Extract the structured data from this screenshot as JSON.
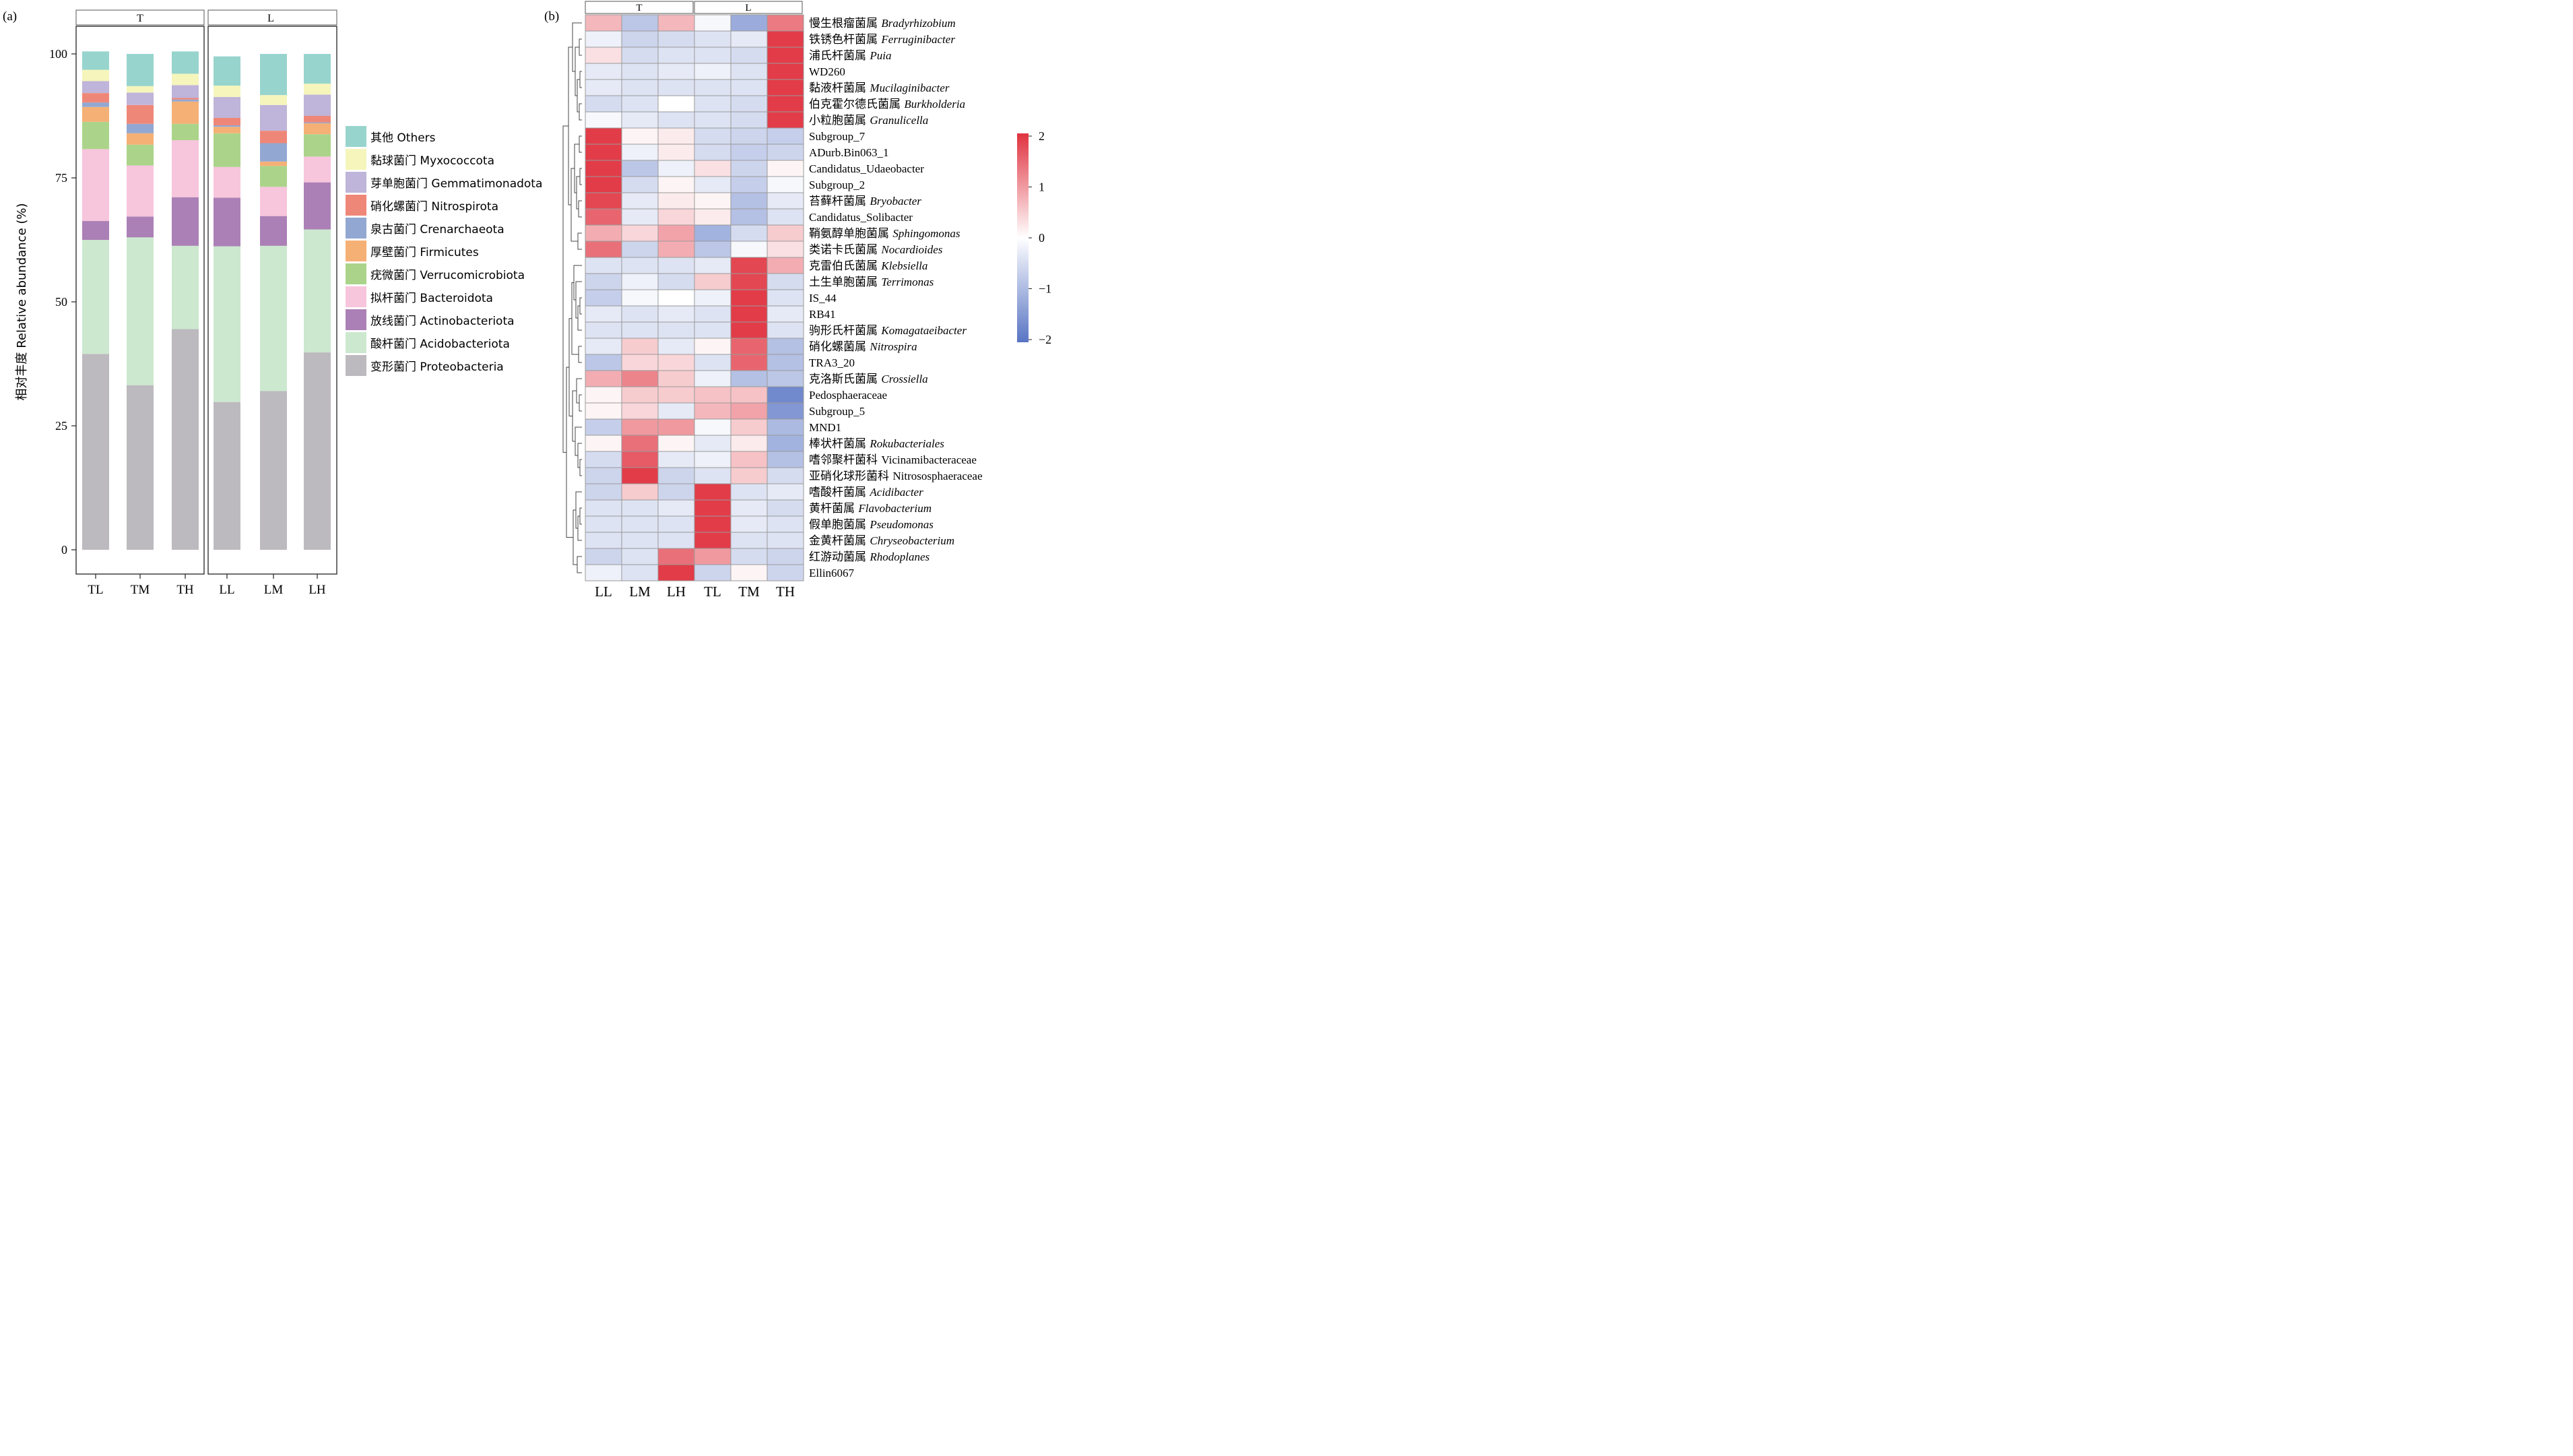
{
  "chart_data": [
    {
      "type": "bar",
      "panel_label": "(a)",
      "ylabel": "相对丰度 Relative abundance (%)",
      "ylim": [
        0,
        100
      ],
      "yticks": [
        "0",
        "25",
        "50",
        "75",
        "100"
      ],
      "facets": [
        "T",
        "L"
      ],
      "categories": [
        "TL",
        "TM",
        "TH",
        "LL",
        "LM",
        "LH"
      ],
      "series": [
        {
          "name": "变形菌门 Proteobacteria",
          "color": "#bcbabe",
          "values": [
            39.5,
            33.2,
            44.5,
            29.8,
            32.0,
            39.8
          ]
        },
        {
          "name": "酸杆菌门 Acidobacteriota",
          "color": "#cce8cf",
          "values": [
            23.0,
            29.8,
            16.8,
            31.4,
            29.3,
            24.8
          ]
        },
        {
          "name": "放线菌门 Actinobacteriota",
          "color": "#ab80b6",
          "values": [
            3.8,
            4.2,
            9.8,
            9.8,
            6.0,
            9.5
          ]
        },
        {
          "name": "拟杆菌门 Bacteroidota",
          "color": "#f7c5dc",
          "values": [
            14.5,
            10.3,
            11.5,
            6.2,
            5.9,
            5.2
          ]
        },
        {
          "name": "疣微菌门 Verrucomicrobiota",
          "color": "#abd48a",
          "values": [
            5.5,
            4.2,
            3.3,
            6.8,
            4.2,
            4.5
          ]
        },
        {
          "name": "厚壁菌门 Firmicutes",
          "color": "#f5b075",
          "values": [
            3.0,
            2.3,
            4.5,
            1.3,
            0.9,
            2.2
          ]
        },
        {
          "name": "泉古菌门 Crenarchaeota",
          "color": "#92a8d2",
          "values": [
            0.9,
            1.9,
            0.4,
            0.3,
            3.7,
            0.2
          ]
        },
        {
          "name": "硝化螺菌门 Nitrospirota",
          "color": "#ef8778",
          "values": [
            1.9,
            3.8,
            0.3,
            1.5,
            2.5,
            1.3
          ]
        },
        {
          "name": "芽单胞菌门 Gemmatimonadota",
          "color": "#bfb4d9",
          "values": [
            2.4,
            2.5,
            2.6,
            4.2,
            5.2,
            4.3
          ]
        },
        {
          "name": "黏球菌门 Myxococcota",
          "color": "#f5f5bc",
          "values": [
            2.3,
            1.3,
            2.3,
            2.3,
            2.0,
            2.2
          ]
        },
        {
          "name": "其他 Others",
          "color": "#97d4cd",
          "values": [
            3.7,
            6.5,
            4.5,
            5.9,
            8.3,
            6.0
          ]
        }
      ]
    },
    {
      "type": "heatmap",
      "panel_label": "(b)",
      "facets": [
        "T",
        "L"
      ],
      "columns": [
        "LL",
        "LM",
        "LH",
        "TL",
        "TM",
        "TH"
      ],
      "colorbar_ticks": [
        "2",
        "1",
        "0",
        "−1",
        "−2"
      ],
      "color_range": [
        -2,
        2
      ],
      "rows": [
        {
          "cn": "慢生根瘤菌属",
          "latin": "Bradyrhizobium",
          "values": [
            0.7,
            -0.8,
            0.7,
            -0.1,
            -1.2,
            1.3
          ]
        },
        {
          "cn": "铁锈色杆菌属",
          "latin": "Ferruginibacter",
          "values": [
            -0.2,
            -0.6,
            -0.5,
            -0.4,
            -0.3,
            1.9
          ]
        },
        {
          "cn": "浦氏杆菌属",
          "latin": "Puia",
          "values": [
            0.3,
            -0.5,
            -0.4,
            -0.4,
            -0.5,
            1.9
          ]
        },
        {
          "cn": "",
          "latin": "WD260",
          "values": [
            -0.3,
            -0.4,
            -0.3,
            -0.2,
            -0.4,
            1.9
          ]
        },
        {
          "cn": "黏液杆菌属",
          "latin": "Mucilaginibacter",
          "values": [
            -0.3,
            -0.4,
            -0.4,
            -0.4,
            -0.4,
            1.9
          ]
        },
        {
          "cn": "伯克霍尔德氏菌属",
          "latin": "Burkholderia",
          "values": [
            -0.5,
            -0.4,
            0.0,
            -0.4,
            -0.5,
            1.9
          ]
        },
        {
          "cn": "小粒胞菌属",
          "latin": "Granulicella",
          "values": [
            -0.1,
            -0.3,
            -0.4,
            -0.4,
            -0.5,
            1.9
          ]
        },
        {
          "cn": "",
          "latin": "Subgroup_7",
          "values": [
            1.9,
            0.1,
            0.2,
            -0.5,
            -0.6,
            -0.7
          ]
        },
        {
          "cn": "",
          "latin": "ADurb.Bin063_1",
          "values": [
            1.9,
            -0.2,
            0.2,
            -0.5,
            -0.7,
            -0.6
          ]
        },
        {
          "cn": "",
          "latin": "Candidatus_Udaeobacter",
          "values": [
            1.9,
            -0.8,
            -0.2,
            0.3,
            -0.6,
            0.1
          ]
        },
        {
          "cn": "",
          "latin": "Subgroup_2",
          "values": [
            1.9,
            -0.5,
            0.1,
            -0.3,
            -0.7,
            -0.1
          ]
        },
        {
          "cn": "苔藓杆菌属",
          "latin": "Bryobacter",
          "values": [
            1.8,
            -0.3,
            0.2,
            0.1,
            -0.9,
            -0.3
          ]
        },
        {
          "cn": "",
          "latin": "Candidatus_Solibacter",
          "values": [
            1.5,
            -0.3,
            0.4,
            0.2,
            -0.9,
            -0.4
          ]
        },
        {
          "cn": "鞘氨醇单胞菌属",
          "latin": "Sphingomonas",
          "values": [
            0.8,
            0.4,
            0.9,
            -1.1,
            -0.5,
            0.5
          ]
        },
        {
          "cn": "类诺卡氏菌属",
          "latin": "Nocardioides",
          "values": [
            1.4,
            -0.6,
            0.8,
            -0.8,
            -0.1,
            0.3
          ]
        },
        {
          "cn": "克雷伯氏菌属",
          "latin": "Klebsiella",
          "values": [
            -0.4,
            -0.4,
            -0.4,
            -0.3,
            1.8,
            0.8
          ]
        },
        {
          "cn": "土生单胞菌属",
          "latin": "Terrimonas",
          "values": [
            -0.6,
            -0.2,
            -0.5,
            0.5,
            1.8,
            -0.5
          ]
        },
        {
          "cn": "",
          "latin": "IS_44",
          "values": [
            -0.7,
            -0.1,
            0.0,
            -0.2,
            1.9,
            -0.4
          ]
        },
        {
          "cn": "",
          "latin": "RB41",
          "values": [
            -0.3,
            -0.4,
            -0.3,
            -0.4,
            1.9,
            -0.3
          ]
        },
        {
          "cn": "驹形氏杆菌属",
          "latin": "Komagataeibacter",
          "values": [
            -0.4,
            -0.4,
            -0.4,
            -0.4,
            1.9,
            -0.4
          ]
        },
        {
          "cn": "硝化螺菌属",
          "latin": "Nitrospira",
          "values": [
            -0.3,
            0.5,
            -0.3,
            0.1,
            1.5,
            -0.9
          ]
        },
        {
          "cn": "",
          "latin": "TRA3_20",
          "values": [
            -0.8,
            0.4,
            0.4,
            -0.4,
            1.5,
            -0.9
          ]
        },
        {
          "cn": "克洛斯氏菌属",
          "latin": "Crossiella",
          "values": [
            0.8,
            1.2,
            0.5,
            -0.2,
            -0.9,
            -0.8
          ]
        },
        {
          "cn": "",
          "latin": "Pedosphaeraceae",
          "values": [
            0.1,
            0.5,
            0.5,
            0.6,
            0.6,
            -1.7
          ]
        },
        {
          "cn": "",
          "latin": "Subgroup_5",
          "values": [
            0.1,
            0.4,
            -0.3,
            0.7,
            0.9,
            -1.5
          ]
        },
        {
          "cn": "",
          "latin": "MND1",
          "values": [
            -0.7,
            1.0,
            1.0,
            -0.1,
            0.5,
            -1.0
          ]
        },
        {
          "cn": "棒状杆菌属",
          "latin": "Rokubacteriales",
          "values": [
            0.1,
            1.4,
            0.1,
            -0.3,
            0.2,
            -1.1
          ]
        },
        {
          "cn": "嗜邻聚杆菌科",
          "latin": "Vicinamibacteraceae",
          "values": [
            -0.5,
            1.6,
            -0.3,
            -0.2,
            0.6,
            -0.9
          ]
        },
        {
          "cn": "亚硝化球形菌科",
          "latin": "Nitrososphaeraceae",
          "values": [
            -0.6,
            1.9,
            -0.6,
            -0.4,
            0.5,
            -0.5
          ]
        },
        {
          "cn": "嗜酸杆菌属",
          "latin": "Acidibacter",
          "values": [
            -0.6,
            0.5,
            -0.6,
            1.9,
            -0.4,
            -0.3
          ]
        },
        {
          "cn": "黄杆菌属",
          "latin": "Flavobacterium",
          "values": [
            -0.4,
            -0.4,
            -0.3,
            1.9,
            -0.3,
            -0.5
          ]
        },
        {
          "cn": "假单胞菌属",
          "latin": "Pseudomonas",
          "values": [
            -0.4,
            -0.4,
            -0.4,
            1.9,
            -0.3,
            -0.4
          ]
        },
        {
          "cn": "金黄杆菌属",
          "latin": "Chryseobacterium",
          "values": [
            -0.4,
            -0.4,
            -0.4,
            1.9,
            -0.4,
            -0.4
          ]
        },
        {
          "cn": "红游动菌属",
          "latin": "Rhodoplanes",
          "values": [
            -0.6,
            -0.4,
            1.4,
            1.0,
            -0.5,
            -0.6
          ]
        },
        {
          "cn": "",
          "latin": "Ellin6067",
          "values": [
            -0.2,
            -0.4,
            1.9,
            -0.6,
            0.1,
            -0.6
          ]
        }
      ]
    }
  ]
}
